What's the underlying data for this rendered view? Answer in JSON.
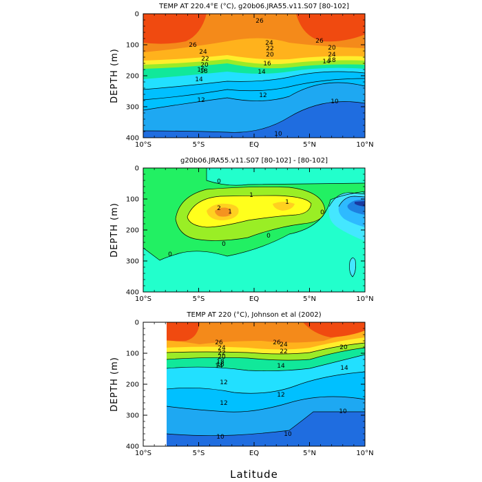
{
  "chart_data": [
    {
      "type": "contour",
      "title": "TEMP AT 220.4°E (°C), g20b06.JRA55.v11.S07 [80-102]",
      "ylabel": "DEPTH (m)",
      "xlabel": "",
      "x_ticks": [
        "10°S",
        "5°S",
        "EQ",
        "5°N",
        "10°N"
      ],
      "y_ticks": [
        "0",
        "100",
        "200",
        "300",
        "400"
      ],
      "xlim": [
        -10,
        10
      ],
      "ylim": [
        400,
        0
      ],
      "contour_labels": [
        "26",
        "26",
        "26",
        "24",
        "24",
        "24",
        "22",
        "22",
        "20",
        "20",
        "20",
        "18",
        "18",
        "16",
        "16",
        "14",
        "14",
        "14",
        "12",
        "12",
        "10",
        "10"
      ]
    },
    {
      "type": "contour",
      "title": "g20b06.JRA55.v11.S07 [80-102] - [80-102]",
      "ylabel": "DEPTH (m)",
      "xlabel": "",
      "x_ticks": [
        "10°S",
        "5°S",
        "EQ",
        "5°N",
        "10°N"
      ],
      "y_ticks": [
        "0",
        "100",
        "200",
        "300",
        "400"
      ],
      "xlim": [
        -10,
        10
      ],
      "ylim": [
        400,
        0
      ],
      "contour_labels": [
        "0",
        "1",
        "2",
        "1",
        "1",
        "0",
        "0",
        "0",
        "0"
      ]
    },
    {
      "type": "contour",
      "title": "TEMP AT 220 (°C), Johnson et al (2002)",
      "ylabel": "DEPTH (m)",
      "xlabel": "Latitude",
      "x_ticks": [
        "10°S",
        "5°S",
        "EQ",
        "5°N",
        "10°N"
      ],
      "y_ticks": [
        "0",
        "100",
        "200",
        "300",
        "400"
      ],
      "xlim": [
        -10,
        10
      ],
      "ylim": [
        400,
        0
      ],
      "contour_labels": [
        "26",
        "26",
        "24",
        "24",
        "22",
        "22",
        "20",
        "20",
        "18",
        "16",
        "14",
        "14",
        "14",
        "12",
        "12",
        "12",
        "10",
        "10",
        "10"
      ]
    }
  ]
}
